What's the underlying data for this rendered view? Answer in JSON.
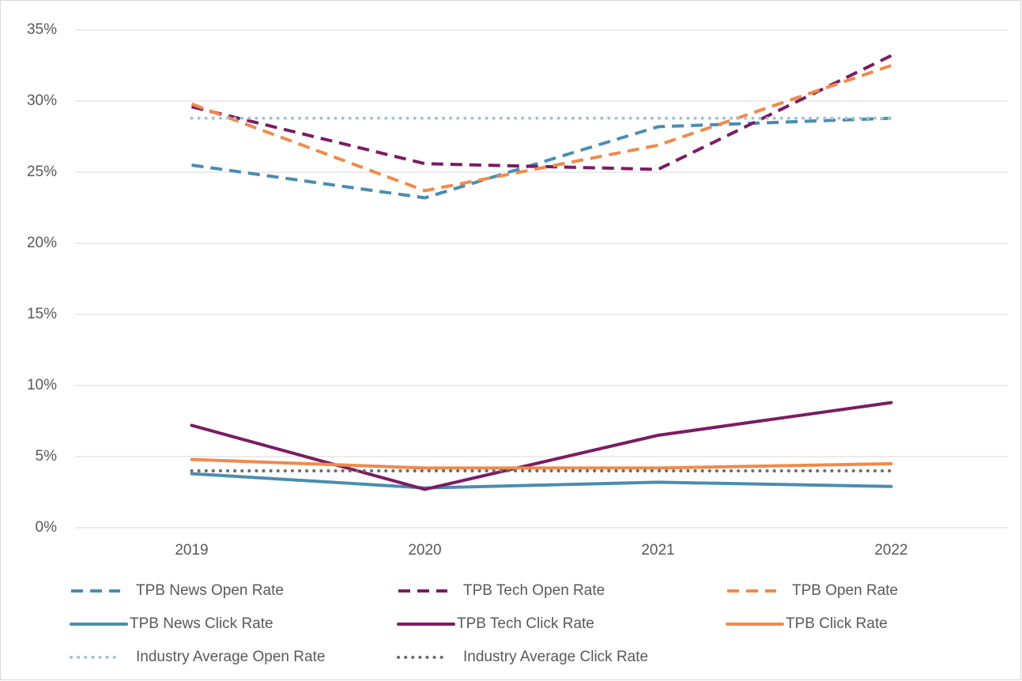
{
  "chart_data": {
    "type": "line",
    "categories": [
      "2019",
      "2020",
      "2021",
      "2022"
    ],
    "ylim": [
      0,
      35
    ],
    "yticks": [
      {
        "value": 0,
        "label": "0%"
      },
      {
        "value": 5,
        "label": "5%"
      },
      {
        "value": 10,
        "label": "10%"
      },
      {
        "value": 15,
        "label": "15%"
      },
      {
        "value": 20,
        "label": "20%"
      },
      {
        "value": 25,
        "label": "25%"
      },
      {
        "value": 30,
        "label": "30%"
      },
      {
        "value": 35,
        "label": "35%"
      }
    ],
    "grid": true,
    "legend": "bottom",
    "series": [
      {
        "name": "TPB News Open Rate",
        "color": "#4a8db0",
        "style": "dashed",
        "values": [
          25.5,
          23.2,
          28.2,
          28.8
        ]
      },
      {
        "name": "TPB Tech Open Rate",
        "color": "#7b1c63",
        "style": "dashed",
        "values": [
          29.6,
          25.6,
          25.2,
          33.2
        ]
      },
      {
        "name": "TPB Open Rate",
        "color": "#f08a4b",
        "style": "dashed",
        "values": [
          29.8,
          23.7,
          26.9,
          32.5
        ]
      },
      {
        "name": "TPB News Click Rate",
        "color": "#4a8db0",
        "style": "solid",
        "values": [
          3.8,
          2.8,
          3.2,
          2.9
        ]
      },
      {
        "name": "TPB Tech Click Rate",
        "color": "#7b1c63",
        "style": "solid",
        "values": [
          7.2,
          2.7,
          6.5,
          8.8
        ]
      },
      {
        "name": "TPB Click Rate",
        "color": "#f08a4b",
        "style": "solid",
        "values": [
          4.8,
          4.2,
          4.2,
          4.5
        ]
      },
      {
        "name": "Industry Average Open Rate",
        "color": "#9fc4d9",
        "style": "dotted",
        "values": [
          28.8,
          28.8,
          28.8,
          28.8
        ]
      },
      {
        "name": "Industry Average Click Rate",
        "color": "#6b6b6b",
        "style": "dotted",
        "values": [
          4.0,
          4.0,
          4.0,
          4.0
        ]
      }
    ]
  }
}
